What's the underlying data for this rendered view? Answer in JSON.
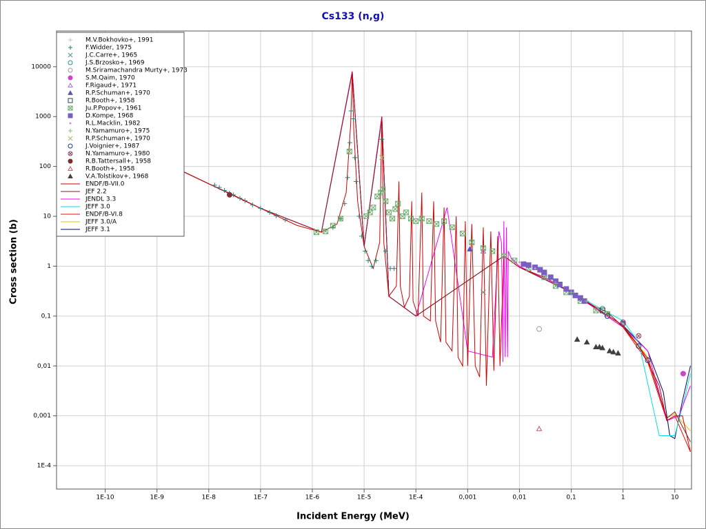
{
  "chart_data": {
    "type": "line",
    "title": "Cs133 (n,g)",
    "x_label": "Incident Energy (MeV)",
    "y_label": "Cross section (b)",
    "xscale": "log",
    "yscale": "log",
    "grid": true,
    "legend": "upper left",
    "xlim": [
      1.15e-11,
      21
    ],
    "ylim": [
      3.4e-05,
      52000
    ],
    "xticks": [
      {
        "value": 1e-10,
        "label": "1E-10"
      },
      {
        "value": 1e-09,
        "label": "1E-9"
      },
      {
        "value": 1e-08,
        "label": "1E-8"
      },
      {
        "value": 1e-07,
        "label": "1E-7"
      },
      {
        "value": 1e-06,
        "label": "1E-6"
      },
      {
        "value": 1e-05,
        "label": "1E-5"
      },
      {
        "value": 0.0001,
        "label": "1E-4"
      },
      {
        "value": 0.001,
        "label": "0,001"
      },
      {
        "value": 0.01,
        "label": "0,01"
      },
      {
        "value": 0.1,
        "label": "0,1"
      },
      1,
      10
    ],
    "yticks": [
      {
        "value": 0.0001,
        "label": "1E-4"
      },
      {
        "value": 0.001,
        "label": "0,001"
      },
      {
        "value": 0.01,
        "label": "0,01"
      },
      {
        "value": 0.1,
        "label": "0,1"
      },
      1,
      10,
      100,
      1000,
      10000
    ],
    "series": [
      {
        "name": "M.V.Bokhovko+, 1991",
        "type": "scatter",
        "marker": "plus",
        "filled": false,
        "color": "#b0c8d8",
        "x": [
          0.03,
          0.06,
          0.1
        ],
        "values": [
          0.7,
          0.42,
          0.3
        ]
      },
      {
        "name": "F.Widder, 1975",
        "type": "scatter",
        "marker": "plus",
        "filled": false,
        "color": "#2e7d74",
        "x": [
          1.3e-08,
          1.6e-08,
          2e-08,
          2.5e-08,
          3e-08,
          4e-08,
          5e-08,
          7e-08,
          1e-07,
          1.5e-07,
          2e-07,
          3e-07,
          2.5e-06,
          3.5e-06,
          4.2e-06,
          4.8e-06,
          5.3e-06,
          5.6e-06,
          6.2e-06,
          6.6e-06,
          7e-06,
          8e-06,
          9e-06,
          1.05e-05,
          1.2e-05,
          1.4e-05,
          1.7e-05,
          2.2e-05,
          2.6e-05,
          3.2e-05,
          3.8e-05
        ],
        "values": [
          42,
          38,
          33,
          29,
          27,
          23,
          20.5,
          17,
          14.5,
          12,
          10.3,
          8.5,
          6,
          9,
          18,
          60,
          300,
          1300,
          900,
          150,
          50,
          10,
          4,
          2,
          1.3,
          1,
          1.3,
          350,
          2,
          0.9,
          0.9
        ]
      },
      {
        "name": "J.C.Carre+, 1965",
        "type": "scatter",
        "marker": "x",
        "filled": false,
        "color": "#5a8a8a",
        "x": [
          0.002
        ],
        "values": [
          0.3
        ]
      },
      {
        "name": "J.S.Brzosko+, 1969",
        "type": "scatter",
        "marker": "circle",
        "filled": false,
        "color": "#3a8a80",
        "x": [
          0.4
        ],
        "values": [
          0.14
        ]
      },
      {
        "name": "M.Sriramachandra Murty+, 1973",
        "type": "scatter",
        "marker": "circle",
        "filled": false,
        "color": "#999999",
        "x": [
          0.024
        ],
        "values": [
          0.055
        ]
      },
      {
        "name": "S.M.Qaim, 1970",
        "type": "scatter",
        "marker": "circle",
        "filled": true,
        "color": "#cc44cc",
        "x": [
          14.5
        ],
        "values": [
          0.007
        ]
      },
      {
        "name": "F.Rigaud+, 1971",
        "type": "scatter",
        "marker": "triangle",
        "filled": false,
        "color": "#a070c0",
        "x": [
          0.002
        ],
        "values": [
          2.0
        ]
      },
      {
        "name": "R.P.Schuman+, 1970",
        "type": "scatter",
        "marker": "triangle",
        "filled": true,
        "color": "#5555bb",
        "x": [
          0.0011
        ],
        "values": [
          2.2
        ]
      },
      {
        "name": "R.Booth+, 1958",
        "type": "scatter",
        "marker": "square",
        "filled": false,
        "color": "#224455",
        "x": [
          0.03,
          0.4
        ],
        "values": [
          0.7,
          0.13
        ]
      },
      {
        "name": "Ju.P.Popov+, 1961",
        "type": "scatter",
        "marker": "squarex",
        "filled": false,
        "color": "#6aaa6a",
        "x": [
          1.2e-06,
          1.8e-06,
          2.5e-06,
          3.5e-06,
          5.2e-06,
          1.1e-05,
          1.3e-05,
          1.5e-05,
          1.8e-05,
          2.1e-05,
          2.3e-05,
          2.6e-05,
          3e-05,
          3.5e-05,
          4e-05,
          4.5e-05,
          5.5e-05,
          6.5e-05,
          8e-05,
          0.0001,
          0.00013,
          0.00018,
          0.00025,
          0.00035,
          0.0005,
          0.0008,
          0.0012,
          0.002,
          0.003,
          0.005,
          0.008,
          0.015,
          0.03,
          0.05,
          0.08,
          0.15,
          0.3,
          0.5
        ],
        "values": [
          4.8,
          5,
          6.5,
          9,
          200,
          10,
          12,
          15,
          25,
          30,
          35,
          20,
          12,
          9,
          14,
          18,
          10,
          12,
          9,
          8,
          9,
          8,
          7,
          8,
          6,
          4.5,
          3,
          2.3,
          2,
          1.6,
          1.3,
          0.9,
          0.6,
          0.4,
          0.3,
          0.2,
          0.13,
          0.11
        ]
      },
      {
        "name": "D.Kompe, 1968",
        "type": "scatter",
        "marker": "square",
        "filled": true,
        "color": "#7b5fc0",
        "x": [
          0.012,
          0.015,
          0.02,
          0.025,
          0.03,
          0.04,
          0.05,
          0.06,
          0.08,
          0.1,
          0.12,
          0.15,
          0.18
        ],
        "values": [
          1.1,
          1.05,
          0.95,
          0.85,
          0.75,
          0.6,
          0.5,
          0.43,
          0.35,
          0.3,
          0.26,
          0.23,
          0.2
        ]
      },
      {
        "name": "R.L.Macklin, 1982",
        "type": "scatter",
        "marker": "dot",
        "filled": true,
        "color": "#c0a0c0",
        "x": [
          0.005,
          0.01,
          0.02
        ],
        "values": [
          1.7,
          1.2,
          0.9
        ]
      },
      {
        "name": "N.Yamamuro+, 1975",
        "type": "scatter",
        "marker": "plus",
        "filled": false,
        "color": "#80c080",
        "x": [
          0.05,
          0.1,
          0.2
        ],
        "values": [
          0.45,
          0.3,
          0.2
        ]
      },
      {
        "name": "R.P.Schuman+, 1970",
        "type": "scatter",
        "marker": "x",
        "filled": false,
        "color": "#a0c060",
        "x": [
          2.2e-05
        ],
        "values": [
          150
        ]
      },
      {
        "name": "J.Voignier+, 1987",
        "type": "scatter",
        "marker": "circle",
        "filled": false,
        "color": "#223388",
        "x": [
          0.5,
          1,
          2,
          3
        ],
        "values": [
          0.1,
          0.07,
          0.025,
          0.013
        ]
      },
      {
        "name": "N.Yamamuro+, 1980",
        "type": "scatter",
        "marker": "circlex",
        "filled": false,
        "color": "#884466",
        "x": [
          1,
          2
        ],
        "values": [
          0.075,
          0.04
        ]
      },
      {
        "name": "R.B.Tattersall+, 1958",
        "type": "scatter",
        "marker": "circle",
        "filled": true,
        "color": "#7a3030",
        "x": [
          2.53e-08
        ],
        "values": [
          27
        ]
      },
      {
        "name": "R.Booth+, 1958",
        "type": "scatter",
        "marker": "triangle",
        "filled": false,
        "color": "#cc5555",
        "x": [
          0.024
        ],
        "values": [
          0.00055
        ]
      },
      {
        "name": "V.A.Tolstikov+, 1968",
        "type": "scatter",
        "marker": "triangle",
        "filled": true,
        "color": "#404040",
        "x": [
          0.13,
          0.2,
          0.3,
          0.35,
          0.4,
          0.55,
          0.65,
          0.8
        ],
        "values": [
          0.034,
          0.03,
          0.024,
          0.024,
          0.023,
          0.02,
          0.019,
          0.018
        ]
      },
      {
        "name": "ENDF/B-VII.0",
        "type": "line",
        "color": "#cc0000",
        "x": [
          1e-09,
          1e-08,
          2.53e-08,
          1e-07,
          5e-07,
          1.5e-06,
          3e-06,
          4.5e-06,
          5.5e-06,
          5.9e-06,
          6.3e-06,
          7.5e-06,
          1e-05,
          1.5e-05,
          2e-05,
          2.2e-05,
          2.4e-05,
          3e-05,
          4.2e-05,
          4.7e-05,
          5e-05,
          6e-05,
          7.5e-05,
          8.3e-05,
          8.8e-05,
          0.00011,
          0.00013,
          0.00014,
          0.00019,
          0.00022,
          0.00024,
          0.0003,
          0.00035,
          0.00038,
          0.0005,
          0.0006,
          0.00065,
          0.0008,
          0.0009,
          0.001,
          0.0012,
          0.0014,
          0.0017,
          0.002,
          0.0023,
          0.0028,
          0.0032,
          0.0038,
          0.0042,
          0.005,
          0.01,
          0.03,
          0.1,
          0.3,
          0.5,
          1,
          2,
          3,
          5,
          7,
          10,
          14,
          20
        ],
        "values": [
          140,
          45,
          29,
          14.5,
          6.6,
          4.8,
          7,
          30,
          700,
          8000,
          600,
          20,
          2.5,
          0.9,
          3,
          1000,
          3,
          0.25,
          0.4,
          50,
          0.4,
          0.15,
          0.25,
          20,
          0.2,
          0.1,
          30,
          0.1,
          0.08,
          20,
          0.08,
          0.03,
          15,
          0.03,
          0.02,
          10,
          0.015,
          0.01,
          8,
          0.01,
          7,
          0.01,
          0.006,
          6,
          0.004,
          5,
          0.008,
          4,
          0.01,
          1.6,
          0.95,
          0.6,
          0.3,
          0.15,
          0.12,
          0.06,
          0.025,
          0.012,
          0.004,
          0.0008,
          0.001,
          0.001,
          0.00019
        ]
      },
      {
        "name": "JEF 2.2",
        "type": "line",
        "color": "#8b1a1a",
        "x": [
          1e-09,
          1e-08,
          1e-07,
          1.5e-06,
          5.9e-06,
          1e-05,
          2.2e-05,
          3e-05,
          0.0001,
          0.005,
          0.01,
          0.1,
          1,
          3,
          7,
          10,
          20
        ],
        "values": [
          140,
          45,
          14.5,
          4.8,
          7500,
          2.5,
          900,
          0.25,
          0.1,
          1.6,
          0.95,
          0.3,
          0.065,
          0.014,
          0.0009,
          0.0012,
          0.0003
        ]
      },
      {
        "name": "JENDL 3.3",
        "type": "line",
        "color": "#ff00ff",
        "x": [
          1e-09,
          1e-08,
          1e-07,
          1.5e-06,
          5.9e-06,
          1e-05,
          2.2e-05,
          3e-05,
          0.0001,
          0.0004,
          0.001,
          0.003,
          0.004,
          0.0045,
          0.0048,
          0.005,
          0.0053,
          0.0056,
          0.0059,
          0.0061,
          0.007,
          0.01,
          0.1,
          1,
          3,
          7,
          12,
          20
        ],
        "values": [
          140,
          45,
          14.5,
          4.8,
          8000,
          2.5,
          1000,
          0.25,
          0.1,
          15,
          0.02,
          0.015,
          5,
          3,
          0.012,
          8,
          0.015,
          6,
          0.015,
          2,
          1.4,
          1,
          0.3,
          0.06,
          0.02,
          0.0008,
          0.001,
          0.004
        ]
      },
      {
        "name": "JEFF 3.0",
        "type": "line",
        "color": "#00e0e0",
        "x": [
          1e-09,
          1e-08,
          1e-07,
          1.5e-06,
          5.9e-06,
          1e-05,
          2.2e-05,
          3e-05,
          0.0001,
          0.005,
          0.01,
          0.1,
          1,
          2,
          5,
          10,
          15,
          20
        ],
        "values": [
          140,
          45,
          14.5,
          4.8,
          7800,
          2.5,
          950,
          0.25,
          0.1,
          1.6,
          0.95,
          0.3,
          0.08,
          0.03,
          0.0004,
          0.0004,
          0.002,
          0.007
        ]
      },
      {
        "name": "ENDF/B-VI.8",
        "type": "line",
        "color": "#ff0000",
        "x": [
          1e-09,
          1e-08,
          1e-07,
          1.5e-06,
          5.9e-06,
          1e-05,
          2.2e-05,
          3e-05,
          0.0001,
          0.005,
          0.01,
          0.1,
          1,
          3,
          7,
          10,
          20
        ],
        "values": [
          140,
          45,
          14.5,
          4.8,
          8000,
          2.5,
          1000,
          0.25,
          0.1,
          1.6,
          0.95,
          0.3,
          0.06,
          0.012,
          0.0008,
          0.001,
          0.00019
        ]
      },
      {
        "name": "JEFF 3.0/A",
        "type": "line",
        "color": "#e0c000",
        "x": [
          1e-09,
          1e-08,
          1e-07,
          1.5e-06,
          5.9e-06,
          1e-05,
          2.2e-05,
          3e-05,
          0.0001,
          0.005,
          0.01,
          0.1,
          1,
          3,
          7,
          10,
          20
        ],
        "values": [
          140,
          45,
          14.5,
          4.8,
          7800,
          2.5,
          950,
          0.25,
          0.1,
          1.6,
          0.95,
          0.3,
          0.065,
          0.015,
          0.0009,
          0.0011,
          0.0005
        ]
      },
      {
        "name": "JEFF 3.1",
        "type": "line",
        "color": "#000060",
        "x": [
          1e-09,
          1e-08,
          1e-07,
          1.5e-06,
          5.9e-06,
          1e-05,
          2.2e-05,
          3e-05,
          0.0001,
          0.005,
          0.01,
          0.1,
          1,
          3,
          6,
          8,
          10,
          14,
          20
        ],
        "values": [
          140,
          45,
          14.5,
          4.8,
          7900,
          2.5,
          980,
          0.25,
          0.1,
          1.6,
          0.95,
          0.3,
          0.065,
          0.02,
          0.003,
          0.0004,
          0.00035,
          0.002,
          0.01
        ]
      }
    ]
  }
}
